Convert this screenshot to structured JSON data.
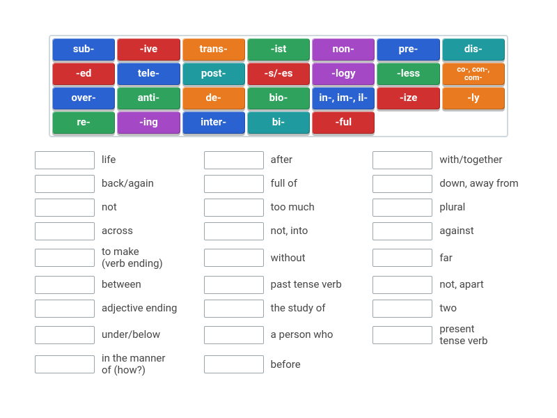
{
  "colors": {
    "blue": "#2a62d1",
    "red": "#d0302f",
    "orange": "#e97a1f",
    "green": "#2fa35d",
    "purple": "#a548c5",
    "teal": "#1f9ba0"
  },
  "tiles": [
    {
      "label": "sub-",
      "color": "blue"
    },
    {
      "label": "-ive",
      "color": "red"
    },
    {
      "label": "trans-",
      "color": "orange"
    },
    {
      "label": "-ist",
      "color": "green"
    },
    {
      "label": "non-",
      "color": "purple"
    },
    {
      "label": "pre-",
      "color": "blue"
    },
    {
      "label": "dis-",
      "color": "teal"
    },
    {
      "label": "-ed",
      "color": "red"
    },
    {
      "label": "tele-",
      "color": "blue"
    },
    {
      "label": "post-",
      "color": "teal"
    },
    {
      "label": "-s/-es",
      "color": "red"
    },
    {
      "label": "-logy",
      "color": "purple"
    },
    {
      "label": "-less",
      "color": "green"
    },
    {
      "label": "co-, con-,\ncom-",
      "color": "orange",
      "small": true
    },
    {
      "label": "over-",
      "color": "blue"
    },
    {
      "label": "anti-",
      "color": "green"
    },
    {
      "label": "de-",
      "color": "orange"
    },
    {
      "label": "bio-",
      "color": "green"
    },
    {
      "label": "in-, im-, il-",
      "color": "blue"
    },
    {
      "label": "-ize",
      "color": "red"
    },
    {
      "label": "-ly",
      "color": "orange"
    },
    {
      "label": "re-",
      "color": "green"
    },
    {
      "label": "-ing",
      "color": "purple"
    },
    {
      "label": "inter-",
      "color": "blue"
    },
    {
      "label": "bi-",
      "color": "teal"
    },
    {
      "label": "-ful",
      "color": "red"
    }
  ],
  "answers": {
    "col1": [
      "life",
      "back/again",
      "not",
      "across",
      "to make\n(verb ending)",
      "between",
      "adjective ending",
      "under/below",
      "in the manner\nof (how?)"
    ],
    "col2": [
      "after",
      "full of",
      "too much",
      "not, into",
      "without",
      "past tense verb",
      "the study of",
      "a person who",
      "before"
    ],
    "col3": [
      "with/together",
      "down, away from",
      "plural",
      "against",
      "far",
      "not, apart",
      "two",
      "present\ntense verb"
    ]
  }
}
